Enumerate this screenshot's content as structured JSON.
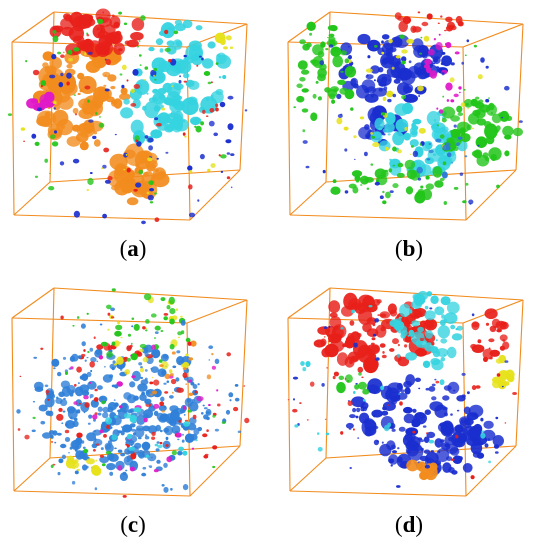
{
  "figure": {
    "panels": [
      {
        "id": "a",
        "caption_open": "(",
        "caption_letter": "a",
        "caption_close": ")",
        "dominant_colors": [
          "#f28c1e",
          "#e8201a",
          "#35d3e0",
          "#1a2ecf",
          "#22c51a",
          "#e018c8",
          "#e6e21a"
        ]
      },
      {
        "id": "b",
        "caption_open": "(",
        "caption_letter": "b",
        "caption_close": ")",
        "dominant_colors": [
          "#1a2ecf",
          "#35d3e0",
          "#22c51a",
          "#e6e21a",
          "#e8201a",
          "#e018c8",
          "#2a7ad8"
        ]
      },
      {
        "id": "c",
        "caption_open": "(",
        "caption_letter": "c",
        "caption_close": ")",
        "dominant_colors": [
          "#2f7fd8",
          "#e8201a",
          "#e6e21a",
          "#22c51a",
          "#e018c8",
          "#35d3e0",
          "#f28c1e"
        ]
      },
      {
        "id": "d",
        "caption_open": "(",
        "caption_letter": "d",
        "caption_close": ")",
        "dominant_colors": [
          "#e8201a",
          "#1a2ecf",
          "#35d3e0",
          "#e6e21a",
          "#f28c1e",
          "#22c51a",
          "#e018c8"
        ]
      }
    ],
    "box_edge_color": "#f28c1e"
  }
}
